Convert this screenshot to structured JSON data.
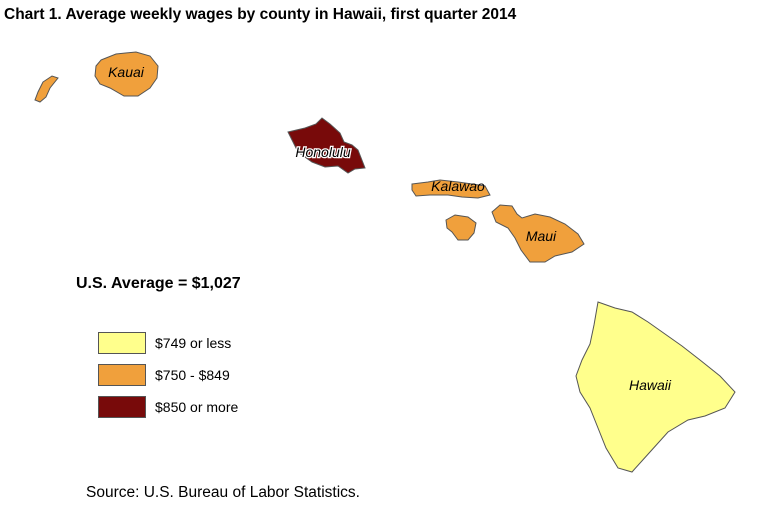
{
  "title": "Chart 1. Average weekly wages by county in Hawaii, first quarter 2014",
  "us_average": "U.S. Average = $1,027",
  "legend": [
    {
      "label": "$749 or less",
      "color": "#ffff8c"
    },
    {
      "label": "$750 - $849",
      "color": "#f0a03c"
    },
    {
      "label": "$850 or more",
      "color": "#780a0a"
    }
  ],
  "counties": {
    "kauai": {
      "name": "Kauai",
      "wage_class": "$750 - $849",
      "color": "#f0a03c"
    },
    "honolulu": {
      "name": "Honolulu",
      "wage_class": "$850 or more",
      "color": "#780a0a"
    },
    "kalawao": {
      "name": "Kalawao",
      "wage_class": "$750 - $849",
      "color": "#f0a03c"
    },
    "maui": {
      "name": "Maui",
      "wage_class": "$750 - $849",
      "color": "#f0a03c"
    },
    "hawaii": {
      "name": "Hawaii",
      "wage_class": "$749 or less",
      "color": "#ffff8c"
    }
  },
  "source": "Source: U.S. Bureau of Labor Statistics."
}
